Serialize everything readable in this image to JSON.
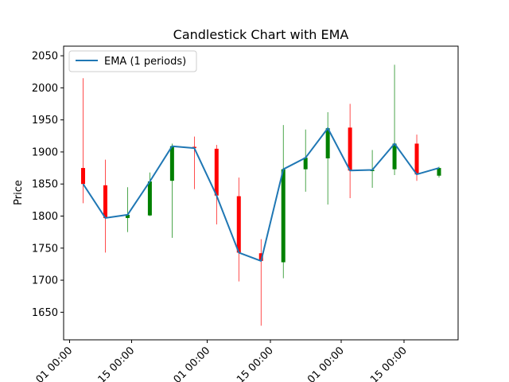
{
  "chart_data": {
    "type": "candlestick",
    "title": "Candlestick Chart with EMA",
    "xlabel": "",
    "ylabel": "Price",
    "ylim": [
      1607,
      2065
    ],
    "grid": false,
    "legend_position": "top-left",
    "colors": {
      "up": "#008000",
      "down": "#ff0000",
      "ema": "#1f77b4"
    },
    "x_ticks": [
      "01 00:00",
      "15 00:00",
      "01 00:00",
      "15 00:00",
      "01 00:00",
      "15 00:00"
    ],
    "y_ticks": [
      1650,
      1700,
      1750,
      1800,
      1850,
      1900,
      1950,
      2000,
      2050
    ],
    "candles": [
      {
        "open": 1875,
        "close": 1850,
        "high": 2015,
        "low": 1820
      },
      {
        "open": 1848,
        "close": 1797,
        "high": 1888,
        "low": 1743
      },
      {
        "open": 1797,
        "close": 1802,
        "high": 1845,
        "low": 1775
      },
      {
        "open": 1801,
        "close": 1854,
        "high": 1868,
        "low": 1800
      },
      {
        "open": 1855,
        "close": 1909,
        "high": 1913,
        "low": 1766
      },
      {
        "open": 1908,
        "close": 1906,
        "high": 1924,
        "low": 1842
      },
      {
        "open": 1905,
        "close": 1832,
        "high": 1911,
        "low": 1787
      },
      {
        "open": 1831,
        "close": 1743,
        "high": 1860,
        "low": 1698
      },
      {
        "open": 1742,
        "close": 1730,
        "high": 1764,
        "low": 1629
      },
      {
        "open": 1728,
        "close": 1873,
        "high": 1942,
        "low": 1703
      },
      {
        "open": 1873,
        "close": 1891,
        "high": 1935,
        "low": 1838
      },
      {
        "open": 1890,
        "close": 1937,
        "high": 1962,
        "low": 1818
      },
      {
        "open": 1938,
        "close": 1871,
        "high": 1975,
        "low": 1828
      },
      {
        "open": 1871,
        "close": 1872,
        "high": 1903,
        "low": 1844
      },
      {
        "open": 1873,
        "close": 1913,
        "high": 2036,
        "low": 1864
      },
      {
        "open": 1913,
        "close": 1865,
        "high": 1927,
        "low": 1855
      },
      {
        "open": 1863,
        "close": 1875,
        "high": 1877,
        "low": 1860
      }
    ],
    "series": [
      {
        "name": "EMA (1 periods)",
        "values": [
          1850,
          1797,
          1802,
          1854,
          1909,
          1906,
          1832,
          1743,
          1730,
          1873,
          1891,
          1937,
          1871,
          1872,
          1913,
          1865,
          1875
        ]
      }
    ]
  }
}
